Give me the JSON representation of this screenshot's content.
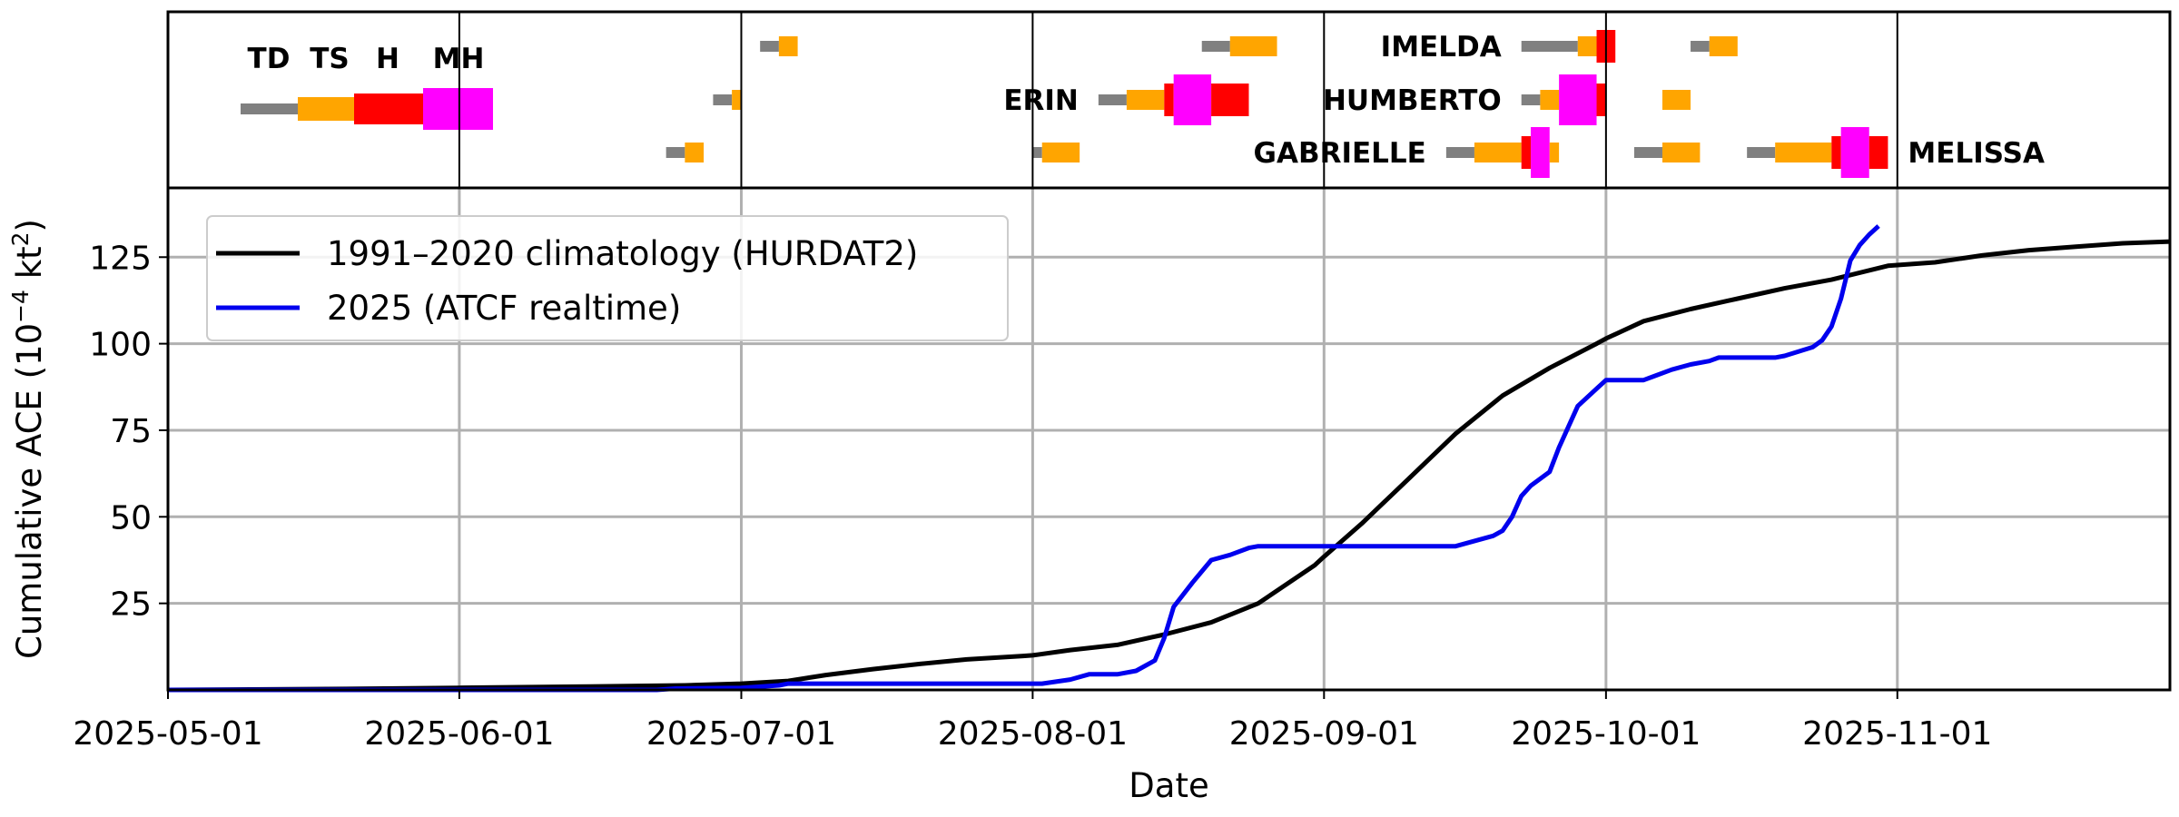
{
  "chart_data": {
    "type": "line",
    "xlabel": "Date",
    "ylabel_main": "Cumulative ACE (10",
    "ylabel_exp": "−4",
    "ylabel_unit": " kt",
    "ylabel_exp2": "2",
    "ylabel_close": ")",
    "x_axis_type": "date",
    "xlim": [
      "2025-05-01",
      "2025-11-30"
    ],
    "ylim": [
      0,
      145
    ],
    "x_ticks": [
      "2025-05-01",
      "2025-06-01",
      "2025-07-01",
      "2025-08-01",
      "2025-09-01",
      "2025-10-01",
      "2025-11-01"
    ],
    "y_ticks": [
      25,
      50,
      75,
      100,
      125
    ],
    "grid": true,
    "legend_position": "upper-left",
    "series": [
      {
        "name": "1991–2020 climatology (HURDAT2)",
        "color": "#000000",
        "points": [
          [
            "2025-05-01",
            0
          ],
          [
            "2025-05-20",
            0.3
          ],
          [
            "2025-06-01",
            0.6
          ],
          [
            "2025-06-15",
            1.0
          ],
          [
            "2025-06-25",
            1.3
          ],
          [
            "2025-07-01",
            1.8
          ],
          [
            "2025-07-06",
            2.6
          ],
          [
            "2025-07-10",
            4.3
          ],
          [
            "2025-07-15",
            6.0
          ],
          [
            "2025-07-20",
            7.5
          ],
          [
            "2025-07-25",
            8.8
          ],
          [
            "2025-07-31",
            9.8
          ],
          [
            "2025-08-01",
            10.0
          ],
          [
            "2025-08-05",
            11.5
          ],
          [
            "2025-08-10",
            13.0
          ],
          [
            "2025-08-15",
            16.0
          ],
          [
            "2025-08-20",
            19.5
          ],
          [
            "2025-08-25",
            25.0
          ],
          [
            "2025-08-31",
            36.0
          ],
          [
            "2025-09-01",
            38.5
          ],
          [
            "2025-09-05",
            48.0
          ],
          [
            "2025-09-10",
            61.0
          ],
          [
            "2025-09-15",
            74.0
          ],
          [
            "2025-09-20",
            85.0
          ],
          [
            "2025-09-25",
            93.0
          ],
          [
            "2025-09-30",
            100.0
          ],
          [
            "2025-10-01",
            101.5
          ],
          [
            "2025-10-05",
            106.5
          ],
          [
            "2025-10-10",
            110.0
          ],
          [
            "2025-10-15",
            113.0
          ],
          [
            "2025-10-20",
            116.0
          ],
          [
            "2025-10-25",
            118.5
          ],
          [
            "2025-10-31",
            122.5
          ],
          [
            "2025-11-05",
            123.5
          ],
          [
            "2025-11-10",
            125.5
          ],
          [
            "2025-11-15",
            127.0
          ],
          [
            "2025-11-20",
            128.0
          ],
          [
            "2025-11-25",
            129.0
          ],
          [
            "2025-11-30",
            129.5
          ]
        ]
      },
      {
        "name": "2025 (ATCF realtime)",
        "color": "#0000ee",
        "points": [
          [
            "2025-05-01",
            0
          ],
          [
            "2025-06-22",
            0
          ],
          [
            "2025-06-24",
            0.4
          ],
          [
            "2025-07-01",
            0.6
          ],
          [
            "2025-07-05",
            1.3
          ],
          [
            "2025-07-06",
            1.8
          ],
          [
            "2025-08-02",
            1.8
          ],
          [
            "2025-08-05",
            3.0
          ],
          [
            "2025-08-07",
            4.5
          ],
          [
            "2025-08-10",
            4.5
          ],
          [
            "2025-08-12",
            5.5
          ],
          [
            "2025-08-14",
            8.5
          ],
          [
            "2025-08-15",
            15.0
          ],
          [
            "2025-08-16",
            24.0
          ],
          [
            "2025-08-18",
            31.0
          ],
          [
            "2025-08-20",
            37.5
          ],
          [
            "2025-08-22",
            39.0
          ],
          [
            "2025-08-24",
            41.0
          ],
          [
            "2025-08-25",
            41.5
          ],
          [
            "2025-09-15",
            41.5
          ],
          [
            "2025-09-19",
            44.5
          ],
          [
            "2025-09-20",
            46.0
          ],
          [
            "2025-09-21",
            50.0
          ],
          [
            "2025-09-22",
            56.0
          ],
          [
            "2025-09-23",
            59.0
          ],
          [
            "2025-09-25",
            63.0
          ],
          [
            "2025-09-26",
            70.0
          ],
          [
            "2025-09-28",
            82.0
          ],
          [
            "2025-09-30",
            87.0
          ],
          [
            "2025-10-01",
            89.5
          ],
          [
            "2025-10-05",
            89.5
          ],
          [
            "2025-10-06",
            90.5
          ],
          [
            "2025-10-08",
            92.5
          ],
          [
            "2025-10-10",
            94.0
          ],
          [
            "2025-10-12",
            95.0
          ],
          [
            "2025-10-13",
            96.0
          ],
          [
            "2025-10-19",
            96.0
          ],
          [
            "2025-10-20",
            96.5
          ],
          [
            "2025-10-23",
            99.0
          ],
          [
            "2025-10-24",
            101.0
          ],
          [
            "2025-10-25",
            105.0
          ],
          [
            "2025-10-26",
            113.0
          ],
          [
            "2025-10-27",
            124.0
          ],
          [
            "2025-10-28",
            128.5
          ],
          [
            "2025-10-29",
            131.5
          ],
          [
            "2025-10-30",
            134.0
          ]
        ]
      }
    ],
    "intensity_legend": {
      "labels": [
        "TD",
        "TS",
        "H",
        "MH"
      ],
      "colors": [
        "#808080",
        "#ffa500",
        "#ff0000",
        "#ff00ff"
      ]
    },
    "storm_tracks": [
      {
        "name": "",
        "row": 3,
        "segments": [
          [
            "2025-06-23",
            "2025-06-25",
            "TD"
          ],
          [
            "2025-06-25",
            "2025-06-27",
            "TS"
          ]
        ]
      },
      {
        "name": "",
        "row": 2,
        "segments": [
          [
            "2025-06-28",
            "2025-06-30",
            "TD"
          ],
          [
            "2025-06-30",
            "2025-07-01",
            "TS"
          ]
        ]
      },
      {
        "name": "",
        "row": 1,
        "segments": [
          [
            "2025-07-03",
            "2025-07-05",
            "TD"
          ],
          [
            "2025-07-05",
            "2025-07-07",
            "TS"
          ]
        ]
      },
      {
        "name": "",
        "row": 3,
        "segments": [
          [
            "2025-08-01",
            "2025-08-02",
            "TD"
          ],
          [
            "2025-08-02",
            "2025-08-06",
            "TS"
          ]
        ]
      },
      {
        "name": "ERIN",
        "name_side": "left",
        "row": 2,
        "segments": [
          [
            "2025-08-08",
            "2025-08-11",
            "TD"
          ],
          [
            "2025-08-11",
            "2025-08-15",
            "TS"
          ],
          [
            "2025-08-15",
            "2025-08-16",
            "H"
          ],
          [
            "2025-08-16",
            "2025-08-20",
            "MH"
          ],
          [
            "2025-08-20",
            "2025-08-24",
            "H"
          ]
        ]
      },
      {
        "name": "",
        "row": 1,
        "segments": [
          [
            "2025-08-19",
            "2025-08-22",
            "TD"
          ],
          [
            "2025-08-22",
            "2025-08-27",
            "TS"
          ]
        ]
      },
      {
        "name": "GABRIELLE",
        "name_side": "left",
        "row": 3,
        "segments": [
          [
            "2025-09-14",
            "2025-09-17",
            "TD"
          ],
          [
            "2025-09-17",
            "2025-09-22",
            "TS"
          ],
          [
            "2025-09-22",
            "2025-09-23",
            "H"
          ],
          [
            "2025-09-23",
            "2025-09-25",
            "MH"
          ],
          [
            "2025-09-25",
            "2025-09-26",
            "TS"
          ]
        ]
      },
      {
        "name": "IMELDA",
        "name_side": "left",
        "row": 1,
        "segments": [
          [
            "2025-09-22",
            "2025-09-28",
            "TD"
          ],
          [
            "2025-09-28",
            "2025-09-30",
            "TS"
          ],
          [
            "2025-09-30",
            "2025-10-02",
            "H"
          ]
        ]
      },
      {
        "name": "HUMBERTO",
        "name_side": "left",
        "row": 2,
        "segments": [
          [
            "2025-09-22",
            "2025-09-24",
            "TD"
          ],
          [
            "2025-09-24",
            "2025-09-26",
            "TS"
          ],
          [
            "2025-09-26",
            "2025-09-30",
            "MH"
          ],
          [
            "2025-09-30",
            "2025-10-01",
            "H"
          ]
        ]
      },
      {
        "name": "",
        "row": 3,
        "segments": [
          [
            "2025-10-04",
            "2025-10-07",
            "TD"
          ],
          [
            "2025-10-07",
            "2025-10-11",
            "TS"
          ]
        ]
      },
      {
        "name": "",
        "row": 2,
        "segments": [
          [
            "2025-10-07",
            "2025-10-10",
            "TS"
          ]
        ]
      },
      {
        "name": "",
        "row": 1,
        "segments": [
          [
            "2025-10-10",
            "2025-10-12",
            "TD"
          ],
          [
            "2025-10-12",
            "2025-10-15",
            "TS"
          ]
        ]
      },
      {
        "name": "MELISSA",
        "name_side": "right",
        "row": 3,
        "segments": [
          [
            "2025-10-16",
            "2025-10-19",
            "TD"
          ],
          [
            "2025-10-19",
            "2025-10-25",
            "TS"
          ],
          [
            "2025-10-25",
            "2025-10-26",
            "H"
          ],
          [
            "2025-10-26",
            "2025-10-29",
            "MH"
          ],
          [
            "2025-10-29",
            "2025-10-31",
            "H"
          ]
        ]
      }
    ]
  }
}
